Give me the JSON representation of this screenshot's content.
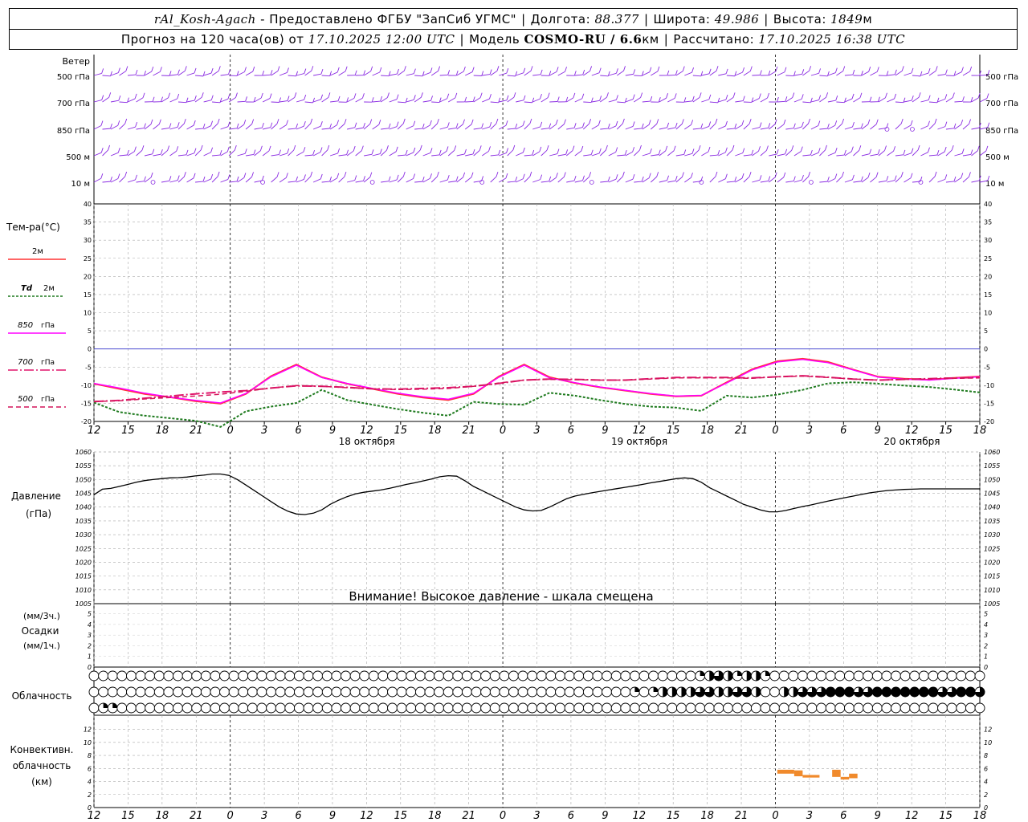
{
  "header": {
    "station": "rAl_Kosh-Agach",
    "dash": " - ",
    "provider": "Предоставлено ФГБУ \"ЗапСиб УГМС\"",
    "lon_label": "Долгота: ",
    "lon_value": "88.377",
    "lat_label": "Широта: ",
    "lat_value": "49.986",
    "alt_label": "Высота: ",
    "alt_value": "1849",
    "alt_unit": "м",
    "forecast_label": "Прогноз на 120 часа(ов) от ",
    "forecast_start": "17.10.2025 12:00 UTC",
    "model_label": "Модель ",
    "model_name": "COSMO-RU / 6.6",
    "model_unit": "км",
    "calc_label": "Рассчитано: ",
    "calc_value": "17.10.2025 16:38 UTC"
  },
  "colors": {
    "wind": "#8a2be2",
    "t2m": "#ff3333",
    "td2m": "#1e7a1e",
    "t850": "#ff00ff",
    "t700": "#e0156b",
    "t500": "#d4145a",
    "pressure": "#000000",
    "convective": "#f08a2c",
    "zero_line": "#3333cc"
  },
  "chart_data": [
    {
      "type": "wind_barbs",
      "title": "Ветер",
      "levels": [
        "500 гПа",
        "700 гПа",
        "850 гПа",
        "500 м",
        "10 м"
      ],
      "x_hours": [
        0,
        105
      ]
    },
    {
      "type": "line",
      "title": "Тем-ра(°C)",
      "ylim": [
        -20,
        40
      ],
      "yticks": [
        -20,
        -15,
        -10,
        -5,
        0,
        5,
        10,
        15,
        20,
        25,
        30,
        35,
        40
      ],
      "x_tick_labels": [
        "12",
        "15",
        "18",
        "21",
        "0",
        "3",
        "6",
        "9",
        "12",
        "15",
        "18",
        "21",
        "0",
        "3",
        "6",
        "9",
        "12",
        "15",
        "18",
        "21",
        "0",
        "3",
        "6",
        "9",
        "12",
        "15",
        "18"
      ],
      "day_labels": [
        "18 октября",
        "19 октября",
        "20 октября"
      ],
      "legend_labels": [
        "2м",
        "Td",
        "2м",
        "850",
        "гПа",
        "700",
        "гПа",
        "500",
        "гПа"
      ],
      "series": [
        {
          "name": "2м",
          "x": [
            0,
            3,
            6,
            9,
            12,
            15,
            18,
            21,
            24,
            27,
            30,
            33,
            36,
            39,
            42,
            45,
            48,
            51,
            54,
            57,
            60,
            63,
            66,
            69,
            72,
            75,
            78,
            81,
            84,
            87,
            90,
            93,
            96,
            99,
            102,
            105
          ],
          "values": [
            -9.6,
            -11,
            -12.4,
            -13.3,
            -14.4,
            -15.1,
            -12.4,
            -7.5,
            -4.3,
            -7.8,
            -9.6,
            -11,
            -12.4,
            -13.4,
            -14.1,
            -12.4,
            -7.6,
            -4.3,
            -7.8,
            -9.4,
            -10.6,
            -11.5,
            -12.4,
            -13.1,
            -12.9,
            -9.2,
            -5.6,
            -3.4,
            -2.7,
            -3.6,
            -5.7,
            -7.7,
            -8.2,
            -8.5,
            -8.0,
            -7.6
          ]
        },
        {
          "name": "Td 2м",
          "x": [
            0,
            3,
            6,
            9,
            12,
            15,
            18,
            21,
            24,
            27,
            30,
            33,
            36,
            39,
            42,
            45,
            48,
            51,
            54,
            57,
            60,
            63,
            66,
            69,
            72,
            75,
            78,
            81,
            84,
            87,
            90,
            93,
            96,
            99,
            102,
            105
          ],
          "values": [
            -14.8,
            -17.4,
            -18.4,
            -19.1,
            -19.8,
            -21.5,
            -17.2,
            -15.9,
            -14.9,
            -11.3,
            -14.1,
            -15.4,
            -16.6,
            -17.6,
            -18.4,
            -14.6,
            -15.2,
            -15.4,
            -12.1,
            -12.9,
            -14.1,
            -15.2,
            -15.9,
            -16.2,
            -17.1,
            -12.9,
            -13.4,
            -12.6,
            -11.3,
            -9.5,
            -9.2,
            -9.6,
            -10.1,
            -10.5,
            -11.2,
            -12.0
          ]
        },
        {
          "name": "850 гПа",
          "x": [
            0,
            3,
            6,
            9,
            12,
            15,
            18,
            21,
            24,
            27,
            30,
            33,
            36,
            39,
            42,
            45,
            48,
            51,
            54,
            57,
            60,
            63,
            66,
            69,
            72,
            75,
            78,
            81,
            84,
            87,
            90,
            93,
            96,
            99,
            102,
            105
          ],
          "values": [
            -9.5,
            -10.8,
            -12.2,
            -13.3,
            -14.2,
            -14.9,
            -12.3,
            -7.7,
            -4.5,
            -7.9,
            -9.5,
            -10.9,
            -12.2,
            -13.2,
            -13.9,
            -12.2,
            -7.8,
            -4.5,
            -8.0,
            -9.3,
            -10.5,
            -11.4,
            -12.3,
            -13.0,
            -12.8,
            -9.4,
            -5.8,
            -3.6,
            -2.9,
            -3.8,
            -5.8,
            -7.8,
            -8.3,
            -8.6,
            -8.1,
            -7.7
          ]
        },
        {
          "name": "700 гПа",
          "x": [
            0,
            3,
            6,
            9,
            12,
            15,
            18,
            21,
            24,
            27,
            30,
            33,
            36,
            39,
            42,
            45,
            48,
            51,
            54,
            57,
            60,
            63,
            66,
            69,
            72,
            75,
            78,
            81,
            84,
            87,
            90,
            93,
            96,
            99,
            102,
            105
          ],
          "values": [
            -14.5,
            -14.2,
            -13.6,
            -13.0,
            -12.4,
            -11.9,
            -11.5,
            -10.8,
            -10.2,
            -10.3,
            -10.6,
            -11.0,
            -11.1,
            -10.9,
            -10.7,
            -10.3,
            -9.5,
            -8.6,
            -8.3,
            -8.4,
            -8.6,
            -8.6,
            -8.2,
            -7.9,
            -7.9,
            -7.9,
            -8.0,
            -7.7,
            -7.4,
            -7.8,
            -8.3,
            -8.6,
            -8.4,
            -8.2,
            -8.0,
            -7.9
          ]
        },
        {
          "name": "500 гПа",
          "x": [
            0,
            3,
            6,
            9,
            12,
            15,
            18,
            21,
            24,
            27,
            30,
            33,
            36,
            39,
            42,
            45,
            48,
            51,
            54,
            57,
            60,
            63,
            66,
            69,
            72,
            75,
            78,
            81,
            84,
            87,
            90,
            93,
            96,
            99,
            102,
            105
          ],
          "values": [
            -14.5,
            -14.3,
            -13.8,
            -13.4,
            -13.0,
            -12.5,
            -11.7,
            -10.8,
            -10.1,
            -10.3,
            -10.7,
            -11.0,
            -11.2,
            -11.1,
            -10.9,
            -10.3,
            -9.4,
            -8.6,
            -8.4,
            -8.5,
            -8.6,
            -8.6,
            -8.3,
            -8.0,
            -8.0,
            -8.0,
            -8.1,
            -7.7,
            -7.5,
            -7.9,
            -8.3,
            -8.6,
            -8.4,
            -8.3,
            -8.1,
            -8.0
          ]
        }
      ]
    },
    {
      "type": "line",
      "title": "Давление",
      "ylabel": "(гПа)",
      "ylim": [
        1005,
        1060
      ],
      "yticks": [
        1005,
        1010,
        1015,
        1020,
        1025,
        1030,
        1035,
        1040,
        1045,
        1050,
        1055,
        1060
      ],
      "annotation": "Внимание! Высокое давление - шкала смещена",
      "series": [
        {
          "name": "Давление",
          "x": [
            0,
            1,
            2,
            3,
            4,
            5,
            6,
            7,
            8,
            9,
            10,
            11,
            12,
            13,
            14,
            15,
            16,
            17,
            18,
            19,
            20,
            21,
            22,
            23,
            24,
            25,
            26,
            27,
            28,
            29,
            30,
            31,
            32,
            33,
            34,
            35,
            36,
            37,
            38,
            39,
            40,
            41,
            42,
            43,
            44,
            45,
            46,
            47,
            48,
            49,
            50,
            51,
            52,
            53,
            54,
            55,
            56,
            57,
            58,
            59,
            60,
            61,
            62,
            63,
            64,
            65,
            66,
            67,
            68,
            69,
            70,
            71,
            72,
            73,
            74,
            75,
            76,
            77,
            78,
            79,
            80,
            81,
            82,
            83,
            84,
            85,
            86,
            87,
            88,
            89,
            90,
            91,
            92,
            93,
            94,
            95,
            96,
            97,
            98,
            99,
            100,
            101,
            102,
            103,
            104,
            105
          ],
          "values": [
            1044.5,
            1046.5,
            1046.8,
            1047.5,
            1048.2,
            1049,
            1049.6,
            1050,
            1050.3,
            1050.6,
            1050.7,
            1050.9,
            1051.3,
            1051.6,
            1052,
            1052,
            1051.5,
            1050,
            1048,
            1046,
            1044,
            1042,
            1040,
            1038.5,
            1037.5,
            1037.3,
            1037.8,
            1039,
            1041,
            1042.5,
            1043.8,
            1044.8,
            1045.4,
            1045.8,
            1046.2,
            1046.8,
            1047.5,
            1048.2,
            1048.8,
            1049.5,
            1050.2,
            1051,
            1051.4,
            1051.2,
            1049.5,
            1047.5,
            1046,
            1044.5,
            1043,
            1041.5,
            1040,
            1039,
            1038.6,
            1038.8,
            1040,
            1041.5,
            1043,
            1044,
            1044.6,
            1045.2,
            1045.7,
            1046.2,
            1046.7,
            1047.2,
            1047.7,
            1048.2,
            1048.8,
            1049.3,
            1049.8,
            1050.3,
            1050.6,
            1050.3,
            1049,
            1047,
            1045.5,
            1044,
            1042.5,
            1041,
            1040,
            1039,
            1038.3,
            1038.3,
            1038.8,
            1039.5,
            1040.2,
            1040.8,
            1041.5,
            1042.2,
            1042.8,
            1043.4,
            1044,
            1044.6,
            1045.2,
            1045.6,
            1046,
            1046.2,
            1046.4,
            1046.5,
            1046.6,
            1046.6,
            1046.6,
            1046.6,
            1046.6,
            1046.6,
            1046.6,
            1046.6
          ]
        }
      ]
    },
    {
      "type": "bar",
      "title": "Осадки",
      "ylabel": "(мм/3ч.)",
      "ylabel2": "(мм/1ч.)",
      "ylim": [
        0,
        5
      ],
      "yticks": [
        0,
        1,
        2,
        3,
        4,
        5
      ],
      "values": []
    },
    {
      "type": "cloud_cover",
      "title": "Облачность",
      "x_hours": [
        0,
        105
      ],
      "rows": [
        {
          "name": "high",
          "x": [
            65,
            66,
            67,
            68,
            69,
            70,
            71,
            72,
            73,
            74,
            75
          ],
          "values": [
            0.25,
            0.5,
            0.75,
            0.5,
            0.25,
            0.5,
            0.5,
            0.25,
            0,
            0,
            0
          ]
        },
        {
          "name": "middle",
          "x": [
            58,
            59,
            60,
            61,
            62,
            63,
            64,
            65,
            66,
            67,
            68,
            69,
            70,
            71,
            72,
            73,
            74,
            75,
            76,
            77,
            78,
            79,
            80,
            81,
            82,
            83,
            84,
            85,
            86,
            87,
            88,
            89,
            90,
            91,
            92,
            93,
            94,
            95,
            96,
            97,
            98,
            99,
            100
          ],
          "values": [
            0.25,
            0,
            0.25,
            0.5,
            0.5,
            0.5,
            0.5,
            0.75,
            0.75,
            0.5,
            0.5,
            0.75,
            0.75,
            0.5,
            0,
            0,
            0.5,
            0.5,
            0.75,
            0.75,
            0.75,
            1,
            1,
            1,
            0.75,
            0.75,
            1,
            1,
            1,
            1,
            1,
            1,
            1,
            0.75,
            0.75,
            1,
            1,
            0.75,
            0.5,
            0.5,
            0,
            0,
            0
          ]
        },
        {
          "name": "low",
          "x": [
            1,
            2
          ],
          "values": [
            0.25,
            0.25
          ]
        }
      ]
    },
    {
      "type": "bar",
      "title": "Конвективн. облачность",
      "ylabel": "(км)",
      "ylim": [
        0,
        14
      ],
      "yticks": [
        0,
        2,
        4,
        6,
        8,
        10,
        12
      ],
      "x_tick_labels": [
        "12",
        "15",
        "18",
        "21",
        "0",
        "3",
        "6",
        "9",
        "12",
        "15",
        "18",
        "21",
        "0",
        "3",
        "6",
        "9",
        "12",
        "15",
        "18",
        "21",
        "0",
        "3",
        "6",
        "9",
        "12",
        "15",
        "18"
      ],
      "segments": [
        {
          "x0": 81.0,
          "x1": 83.0,
          "bottom": 5.2,
          "top": 5.8
        },
        {
          "x0": 83.0,
          "x1": 84.0,
          "bottom": 4.8,
          "top": 5.7
        },
        {
          "x0": 84.0,
          "x1": 86.0,
          "bottom": 4.6,
          "top": 5.0
        },
        {
          "x0": 87.5,
          "x1": 88.5,
          "bottom": 4.7,
          "top": 5.8
        },
        {
          "x0": 88.5,
          "x1": 89.5,
          "bottom": 4.3,
          "top": 4.7
        },
        {
          "x0": 89.5,
          "x1": 90.5,
          "bottom": 4.5,
          "top": 5.2
        }
      ]
    }
  ]
}
